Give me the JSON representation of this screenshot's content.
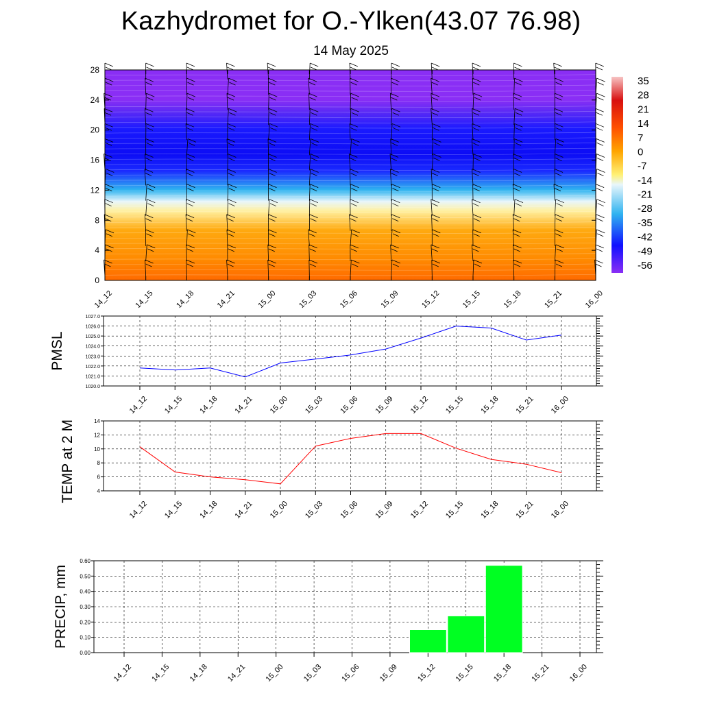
{
  "header": {
    "title": "Kazhydromet for O.-Ylken(43.07 76.98)",
    "subtitle": "14 May 2025"
  },
  "chart_data": [
    {
      "type": "heatmap",
      "x_ticks": [
        "14_12",
        "14_15",
        "14_18",
        "14_21",
        "15_00",
        "15_03",
        "15_06",
        "15_09",
        "15_12",
        "15_15",
        "15_18",
        "15_21",
        "16_00"
      ],
      "y_ticks": [
        "0",
        "4",
        "8",
        "12",
        "16",
        "20",
        "24",
        "28"
      ],
      "ylim": [
        0,
        28
      ],
      "colorbar_labels": [
        "35",
        "28",
        "21",
        "14",
        "7",
        "0",
        "-7",
        "-14",
        "-21",
        "-28",
        "-35",
        "-42",
        "-49",
        "-56"
      ],
      "colors": {
        "high": "#f5b3b3",
        "red": "#e0201a",
        "orange": "#ff7800",
        "yellow": "#fff176",
        "light": "#dff2fb",
        "cyan": "#2fb3f0",
        "blue": "#1010ff",
        "violet": "#8a2ef5"
      }
    },
    {
      "type": "line",
      "ylabel": "PMSL",
      "x": [
        "14_12",
        "14_15",
        "14_18",
        "14_21",
        "15_00",
        "15_03",
        "15_06",
        "15_09",
        "15_12",
        "15_15",
        "15_18",
        "15_21",
        "16_00"
      ],
      "values": [
        1021.8,
        1021.6,
        1021.8,
        1020.9,
        1022.3,
        1022.7,
        1023.1,
        1023.7,
        1024.8,
        1026.0,
        1025.8,
        1024.6,
        1025.1
      ],
      "ylim": [
        1020.0,
        1027.0
      ],
      "y_ticks": [
        "1020.0",
        "1021.0",
        "1022.0",
        "1023.0",
        "1024.0",
        "1025.0",
        "1026.0",
        "1027.0"
      ],
      "color": "#0000ff"
    },
    {
      "type": "line",
      "ylabel": "TEMP at 2 M",
      "x": [
        "14_12",
        "14_15",
        "14_18",
        "14_21",
        "15_00",
        "15_03",
        "15_06",
        "15_09",
        "15_12",
        "15_15",
        "15_18",
        "15_21",
        "16_00"
      ],
      "values": [
        10.3,
        6.7,
        6.0,
        5.6,
        5.0,
        10.4,
        11.5,
        12.2,
        12.2,
        10.1,
        8.5,
        7.8,
        6.6
      ],
      "ylim": [
        4,
        14
      ],
      "y_ticks": [
        "4",
        "6",
        "8",
        "10",
        "12",
        "14"
      ],
      "color": "#ff0000"
    },
    {
      "type": "bar",
      "ylabel": "PRECIP, mm",
      "categories": [
        "14_12",
        "14_15",
        "14_18",
        "14_21",
        "15_00",
        "15_03",
        "15_06",
        "15_09",
        "15_12",
        "15_15",
        "15_18",
        "15_21",
        "16_00"
      ],
      "values": [
        0,
        0,
        0,
        0,
        0,
        0,
        0,
        0,
        0.15,
        0.24,
        0.57,
        0,
        0
      ],
      "ylim": [
        0,
        0.6
      ],
      "y_ticks": [
        "0.00",
        "0.10",
        "0.20",
        "0.30",
        "0.40",
        "0.50",
        "0.60"
      ],
      "color": "#00ff22"
    }
  ]
}
